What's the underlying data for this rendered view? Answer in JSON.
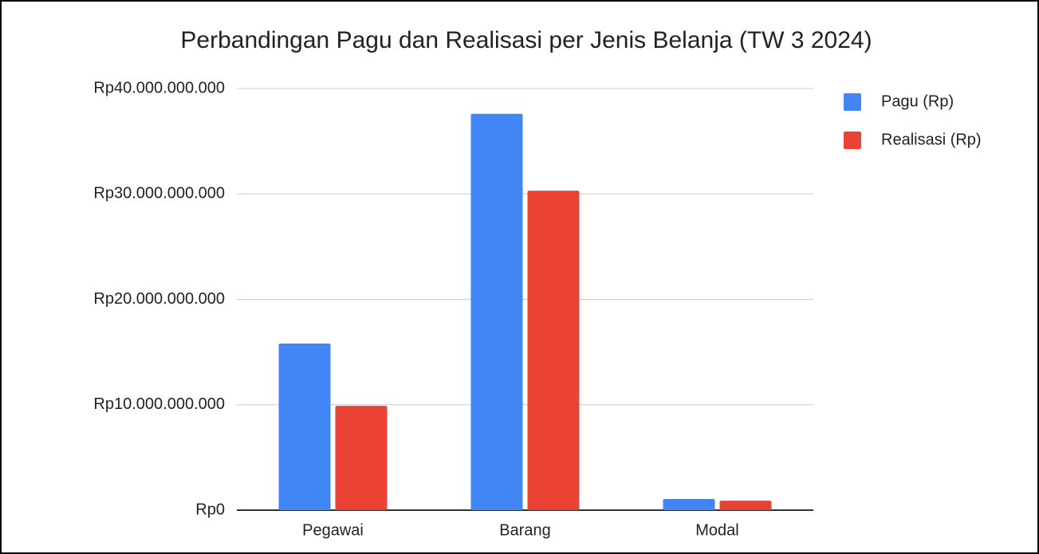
{
  "chart_data": {
    "type": "bar",
    "title": "Perbandingan Pagu dan Realisasi per Jenis Belanja (TW 3 2024)",
    "categories": [
      "Pegawai",
      "Barang",
      "Modal"
    ],
    "series": [
      {
        "name": "Pagu (Rp)",
        "color": "#4285f4",
        "values": [
          15800000000,
          37600000000,
          1060000000
        ]
      },
      {
        "name": "Realisasi (Rp)",
        "color": "#ea4335",
        "values": [
          9900000000,
          30300000000,
          900000000
        ]
      }
    ],
    "ylim": [
      0,
      40000000000
    ],
    "yticks": [
      {
        "value": 0,
        "label": "Rp0"
      },
      {
        "value": 10000000000,
        "label": "Rp10.000.000.000"
      },
      {
        "value": 20000000000,
        "label": "Rp20.000.000.000"
      },
      {
        "value": 30000000000,
        "label": "Rp30.000.000.000"
      },
      {
        "value": 40000000000,
        "label": "Rp40.000.000.000"
      }
    ],
    "grid": true,
    "legend": "right"
  }
}
